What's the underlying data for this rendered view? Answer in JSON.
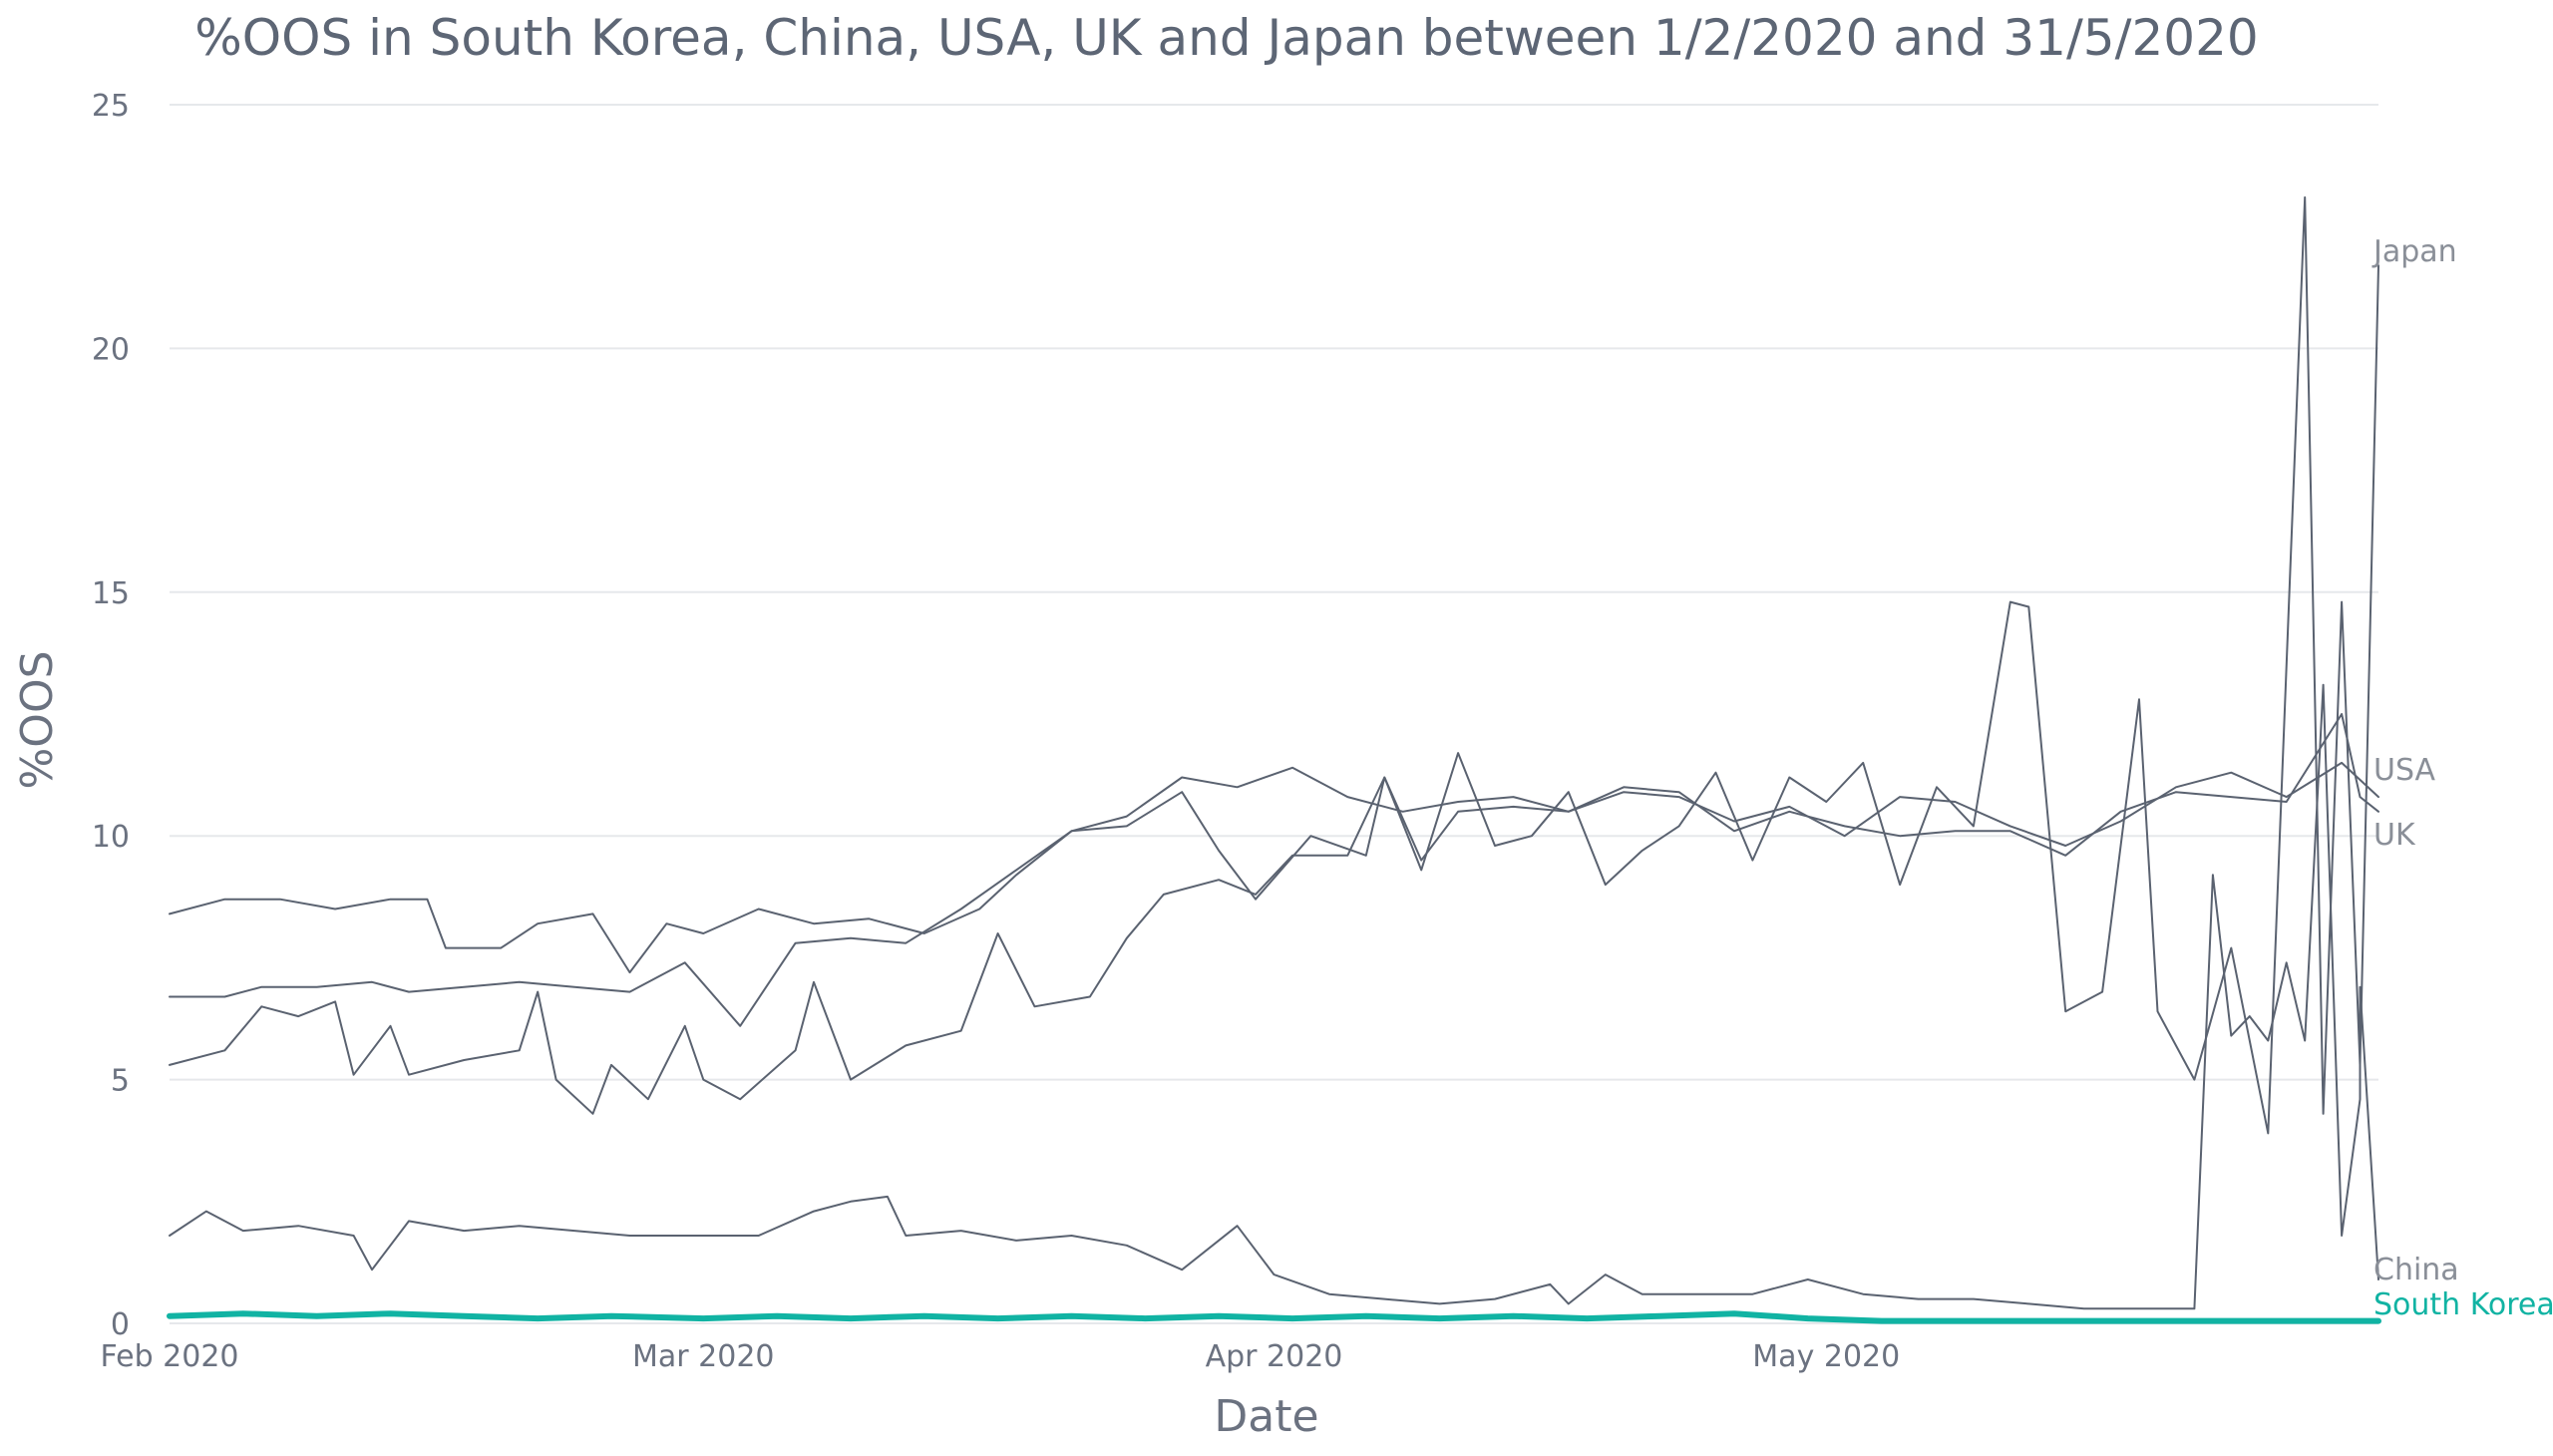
{
  "chart_data": {
    "type": "line",
    "title": "%OOS in South Korea, China, USA, UK and Japan between 1/2/2020 and 31/5/2020",
    "xlabel": "Date",
    "ylabel": "%OOS",
    "x_range": [
      "2020-02-01",
      "2020-05-31"
    ],
    "x_ticks": [
      {
        "date": "2020-02-01",
        "label": "Feb 2020"
      },
      {
        "date": "2020-03-01",
        "label": "Mar 2020"
      },
      {
        "date": "2020-04-01",
        "label": "Apr 2020"
      },
      {
        "date": "2020-05-01",
        "label": "May 2020"
      }
    ],
    "ylim": [
      0,
      25
    ],
    "y_ticks": [
      0,
      5,
      10,
      15,
      20,
      25
    ],
    "grid": "horizontal",
    "legend": "end-of-line labels",
    "colors": {
      "default_series": "#5a6270",
      "highlight": "#11b3a3",
      "grid": "#e6e8eb"
    },
    "series": [
      {
        "name": "Japan",
        "color": "#5a6270",
        "highlight": false,
        "points": [
          [
            "2020-02-01",
            8.4
          ],
          [
            "2020-02-04",
            8.7
          ],
          [
            "2020-02-07",
            8.7
          ],
          [
            "2020-02-10",
            8.5
          ],
          [
            "2020-02-13",
            8.7
          ],
          [
            "2020-02-15",
            8.7
          ],
          [
            "2020-02-16",
            7.7
          ],
          [
            "2020-02-19",
            7.7
          ],
          [
            "2020-02-21",
            8.2
          ],
          [
            "2020-02-24",
            8.4
          ],
          [
            "2020-02-26",
            7.2
          ],
          [
            "2020-02-28",
            8.2
          ],
          [
            "2020-03-01",
            8.0
          ],
          [
            "2020-03-04",
            8.5
          ],
          [
            "2020-03-07",
            8.2
          ],
          [
            "2020-03-10",
            8.3
          ],
          [
            "2020-03-13",
            8.0
          ],
          [
            "2020-03-16",
            8.5
          ],
          [
            "2020-03-18",
            9.2
          ],
          [
            "2020-03-21",
            10.1
          ],
          [
            "2020-03-24",
            10.2
          ],
          [
            "2020-03-27",
            10.9
          ],
          [
            "2020-03-29",
            9.7
          ],
          [
            "2020-03-31",
            8.7
          ],
          [
            "2020-04-03",
            10.0
          ],
          [
            "2020-04-06",
            9.6
          ],
          [
            "2020-04-07",
            11.2
          ],
          [
            "2020-04-09",
            9.3
          ],
          [
            "2020-04-11",
            11.7
          ],
          [
            "2020-04-13",
            9.8
          ],
          [
            "2020-04-15",
            10.0
          ],
          [
            "2020-04-17",
            10.9
          ],
          [
            "2020-04-19",
            9.0
          ],
          [
            "2020-04-21",
            9.7
          ],
          [
            "2020-04-23",
            10.2
          ],
          [
            "2020-04-25",
            11.3
          ],
          [
            "2020-04-27",
            9.5
          ],
          [
            "2020-04-29",
            11.2
          ],
          [
            "2020-05-01",
            10.7
          ],
          [
            "2020-05-03",
            11.5
          ],
          [
            "2020-05-05",
            9.0
          ],
          [
            "2020-05-07",
            11.0
          ],
          [
            "2020-05-09",
            10.2
          ],
          [
            "2020-05-11",
            14.8
          ],
          [
            "2020-05-12",
            14.7
          ],
          [
            "2020-05-14",
            6.4
          ],
          [
            "2020-05-16",
            6.8
          ],
          [
            "2020-05-18",
            12.8
          ],
          [
            "2020-05-19",
            6.4
          ],
          [
            "2020-05-21",
            5.0
          ],
          [
            "2020-05-23",
            7.7
          ],
          [
            "2020-05-25",
            3.9
          ],
          [
            "2020-05-27",
            23.1
          ],
          [
            "2020-05-28",
            4.3
          ],
          [
            "2020-05-29",
            14.8
          ],
          [
            "2020-05-30",
            5.3
          ],
          [
            "2020-05-31",
            21.7
          ]
        ]
      },
      {
        "name": "USA",
        "color": "#5a6270",
        "highlight": false,
        "points": [
          [
            "2020-02-01",
            6.7
          ],
          [
            "2020-02-04",
            6.7
          ],
          [
            "2020-02-06",
            6.9
          ],
          [
            "2020-02-09",
            6.9
          ],
          [
            "2020-02-12",
            7.0
          ],
          [
            "2020-02-14",
            6.8
          ],
          [
            "2020-02-17",
            6.9
          ],
          [
            "2020-02-20",
            7.0
          ],
          [
            "2020-02-23",
            6.9
          ],
          [
            "2020-02-26",
            6.8
          ],
          [
            "2020-02-29",
            7.4
          ],
          [
            "2020-03-03",
            6.1
          ],
          [
            "2020-03-06",
            7.8
          ],
          [
            "2020-03-09",
            7.9
          ],
          [
            "2020-03-12",
            7.8
          ],
          [
            "2020-03-15",
            8.5
          ],
          [
            "2020-03-18",
            9.3
          ],
          [
            "2020-03-21",
            10.1
          ],
          [
            "2020-03-24",
            10.4
          ],
          [
            "2020-03-27",
            11.2
          ],
          [
            "2020-03-30",
            11.0
          ],
          [
            "2020-04-02",
            11.4
          ],
          [
            "2020-04-05",
            10.8
          ],
          [
            "2020-04-08",
            10.5
          ],
          [
            "2020-04-11",
            10.7
          ],
          [
            "2020-04-14",
            10.8
          ],
          [
            "2020-04-17",
            10.5
          ],
          [
            "2020-04-20",
            10.9
          ],
          [
            "2020-04-23",
            10.8
          ],
          [
            "2020-04-26",
            10.3
          ],
          [
            "2020-04-29",
            10.6
          ],
          [
            "2020-05-02",
            10.0
          ],
          [
            "2020-05-05",
            10.8
          ],
          [
            "2020-05-08",
            10.7
          ],
          [
            "2020-05-11",
            10.2
          ],
          [
            "2020-05-14",
            9.8
          ],
          [
            "2020-05-17",
            10.3
          ],
          [
            "2020-05-20",
            11.0
          ],
          [
            "2020-05-23",
            11.3
          ],
          [
            "2020-05-26",
            10.8
          ],
          [
            "2020-05-29",
            11.5
          ],
          [
            "2020-05-31",
            10.8
          ]
        ]
      },
      {
        "name": "UK",
        "color": "#5a6270",
        "highlight": false,
        "points": [
          [
            "2020-02-01",
            5.3
          ],
          [
            "2020-02-04",
            5.6
          ],
          [
            "2020-02-06",
            6.5
          ],
          [
            "2020-02-08",
            6.3
          ],
          [
            "2020-02-10",
            6.6
          ],
          [
            "2020-02-11",
            5.1
          ],
          [
            "2020-02-13",
            6.1
          ],
          [
            "2020-02-14",
            5.1
          ],
          [
            "2020-02-17",
            5.4
          ],
          [
            "2020-02-20",
            5.6
          ],
          [
            "2020-02-21",
            6.8
          ],
          [
            "2020-02-22",
            5.0
          ],
          [
            "2020-02-24",
            4.3
          ],
          [
            "2020-02-25",
            5.3
          ],
          [
            "2020-02-27",
            4.6
          ],
          [
            "2020-02-29",
            6.1
          ],
          [
            "2020-03-01",
            5.0
          ],
          [
            "2020-03-03",
            4.6
          ],
          [
            "2020-03-06",
            5.6
          ],
          [
            "2020-03-07",
            7.0
          ],
          [
            "2020-03-09",
            5.0
          ],
          [
            "2020-03-12",
            5.7
          ],
          [
            "2020-03-15",
            6.0
          ],
          [
            "2020-03-17",
            8.0
          ],
          [
            "2020-03-19",
            6.5
          ],
          [
            "2020-03-22",
            6.7
          ],
          [
            "2020-03-24",
            7.9
          ],
          [
            "2020-03-26",
            8.8
          ],
          [
            "2020-03-29",
            9.1
          ],
          [
            "2020-03-31",
            8.8
          ],
          [
            "2020-04-02",
            9.6
          ],
          [
            "2020-04-05",
            9.6
          ],
          [
            "2020-04-07",
            11.2
          ],
          [
            "2020-04-09",
            9.5
          ],
          [
            "2020-04-11",
            10.5
          ],
          [
            "2020-04-14",
            10.6
          ],
          [
            "2020-04-17",
            10.5
          ],
          [
            "2020-04-20",
            11.0
          ],
          [
            "2020-04-23",
            10.9
          ],
          [
            "2020-04-26",
            10.1
          ],
          [
            "2020-04-29",
            10.5
          ],
          [
            "2020-05-02",
            10.2
          ],
          [
            "2020-05-05",
            10.0
          ],
          [
            "2020-05-08",
            10.1
          ],
          [
            "2020-05-11",
            10.1
          ],
          [
            "2020-05-14",
            9.6
          ],
          [
            "2020-05-17",
            10.5
          ],
          [
            "2020-05-20",
            10.9
          ],
          [
            "2020-05-23",
            10.8
          ],
          [
            "2020-05-26",
            10.7
          ],
          [
            "2020-05-29",
            12.5
          ],
          [
            "2020-05-30",
            10.8
          ],
          [
            "2020-05-31",
            10.5
          ]
        ]
      },
      {
        "name": "China",
        "color": "#5a6270",
        "highlight": false,
        "points": [
          [
            "2020-02-01",
            1.8
          ],
          [
            "2020-02-03",
            2.3
          ],
          [
            "2020-02-05",
            1.9
          ],
          [
            "2020-02-08",
            2.0
          ],
          [
            "2020-02-11",
            1.8
          ],
          [
            "2020-02-12",
            1.1
          ],
          [
            "2020-02-14",
            2.1
          ],
          [
            "2020-02-17",
            1.9
          ],
          [
            "2020-02-20",
            2.0
          ],
          [
            "2020-02-23",
            1.9
          ],
          [
            "2020-02-26",
            1.8
          ],
          [
            "2020-03-01",
            1.8
          ],
          [
            "2020-03-04",
            1.8
          ],
          [
            "2020-03-07",
            2.3
          ],
          [
            "2020-03-09",
            2.5
          ],
          [
            "2020-03-11",
            2.6
          ],
          [
            "2020-03-12",
            1.8
          ],
          [
            "2020-03-15",
            1.9
          ],
          [
            "2020-03-18",
            1.7
          ],
          [
            "2020-03-21",
            1.8
          ],
          [
            "2020-03-24",
            1.6
          ],
          [
            "2020-03-27",
            1.1
          ],
          [
            "2020-03-30",
            2.0
          ],
          [
            "2020-04-01",
            1.0
          ],
          [
            "2020-04-04",
            0.6
          ],
          [
            "2020-04-07",
            0.5
          ],
          [
            "2020-04-10",
            0.4
          ],
          [
            "2020-04-13",
            0.5
          ],
          [
            "2020-04-16",
            0.8
          ],
          [
            "2020-04-17",
            0.4
          ],
          [
            "2020-04-19",
            1.0
          ],
          [
            "2020-04-21",
            0.6
          ],
          [
            "2020-04-24",
            0.6
          ],
          [
            "2020-04-27",
            0.6
          ],
          [
            "2020-04-30",
            0.9
          ],
          [
            "2020-05-03",
            0.6
          ],
          [
            "2020-05-06",
            0.5
          ],
          [
            "2020-05-09",
            0.5
          ],
          [
            "2020-05-12",
            0.4
          ],
          [
            "2020-05-15",
            0.3
          ],
          [
            "2020-05-18",
            0.3
          ],
          [
            "2020-05-21",
            0.3
          ],
          [
            "2020-05-22",
            9.2
          ],
          [
            "2020-05-23",
            5.9
          ],
          [
            "2020-05-24",
            6.3
          ],
          [
            "2020-05-25",
            5.8
          ],
          [
            "2020-05-26",
            7.4
          ],
          [
            "2020-05-27",
            5.8
          ],
          [
            "2020-05-28",
            13.1
          ],
          [
            "2020-05-29",
            1.8
          ],
          [
            "2020-05-30",
            4.6
          ],
          [
            "2020-05-30",
            6.9
          ],
          [
            "2020-05-31",
            0.9
          ]
        ]
      },
      {
        "name": "South Korea",
        "color": "#11b3a3",
        "highlight": true,
        "points": [
          [
            "2020-02-01",
            0.15
          ],
          [
            "2020-02-05",
            0.2
          ],
          [
            "2020-02-09",
            0.15
          ],
          [
            "2020-02-13",
            0.2
          ],
          [
            "2020-02-17",
            0.15
          ],
          [
            "2020-02-21",
            0.1
          ],
          [
            "2020-02-25",
            0.15
          ],
          [
            "2020-03-01",
            0.1
          ],
          [
            "2020-03-05",
            0.15
          ],
          [
            "2020-03-09",
            0.1
          ],
          [
            "2020-03-13",
            0.15
          ],
          [
            "2020-03-17",
            0.1
          ],
          [
            "2020-03-21",
            0.15
          ],
          [
            "2020-03-25",
            0.1
          ],
          [
            "2020-03-29",
            0.15
          ],
          [
            "2020-04-02",
            0.1
          ],
          [
            "2020-04-06",
            0.15
          ],
          [
            "2020-04-10",
            0.1
          ],
          [
            "2020-04-14",
            0.15
          ],
          [
            "2020-04-18",
            0.1
          ],
          [
            "2020-04-22",
            0.15
          ],
          [
            "2020-04-26",
            0.2
          ],
          [
            "2020-04-30",
            0.1
          ],
          [
            "2020-05-04",
            0.05
          ],
          [
            "2020-05-08",
            0.05
          ],
          [
            "2020-05-12",
            0.05
          ],
          [
            "2020-05-16",
            0.05
          ],
          [
            "2020-05-20",
            0.05
          ],
          [
            "2020-05-24",
            0.05
          ],
          [
            "2020-05-28",
            0.05
          ],
          [
            "2020-05-31",
            0.05
          ]
        ]
      }
    ]
  }
}
